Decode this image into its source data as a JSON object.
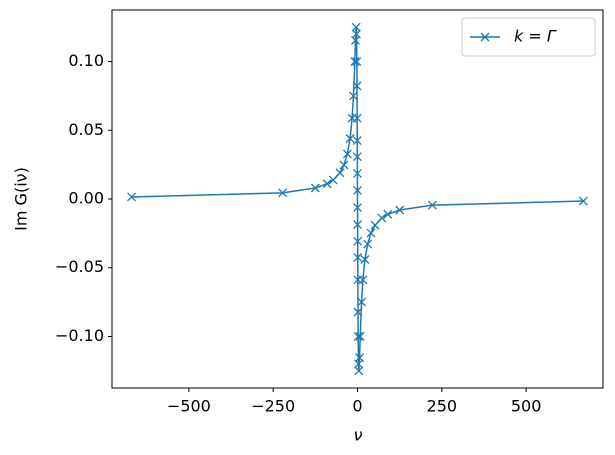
{
  "chart_data": {
    "type": "line",
    "xlabel": "ν",
    "ylabel": "Im G(iν)",
    "x": [
      -670,
      -222,
      -125,
      -90,
      -72,
      -52,
      -40,
      -30,
      -22,
      -16,
      -12,
      -8,
      -6,
      -4,
      -3,
      -2,
      -1.5,
      -1,
      -0.7,
      -0.5,
      -0.3,
      -0.1,
      0.1,
      0.3,
      0.5,
      0.7,
      1,
      1.5,
      2,
      3,
      4,
      6,
      8,
      12,
      16,
      22,
      30,
      40,
      52,
      72,
      90,
      125,
      222,
      670
    ],
    "series": [
      {
        "name": "k = Γ",
        "color": "#1f77b4",
        "marker": "x",
        "values": [
          0.0015,
          0.0045,
          0.008,
          0.0111,
          0.0138,
          0.0191,
          0.0248,
          0.0328,
          0.044,
          0.0588,
          0.075,
          0.1,
          0.1154,
          0.125,
          0.12,
          0.1,
          0.0822,
          0.0588,
          0.0425,
          0.0308,
          0.0186,
          0.0062,
          -0.0062,
          -0.0186,
          -0.0308,
          -0.0425,
          -0.0588,
          -0.0822,
          -0.1,
          -0.12,
          -0.125,
          -0.1154,
          -0.1,
          -0.075,
          -0.0588,
          -0.044,
          -0.0328,
          -0.0248,
          -0.0191,
          -0.0138,
          -0.0111,
          -0.008,
          -0.0045,
          -0.0015
        ]
      }
    ],
    "xlim": [
      -728,
      728
    ],
    "ylim": [
      -0.1375,
      0.1375
    ],
    "xticks": [
      {
        "value": -500,
        "label": "−500"
      },
      {
        "value": -250,
        "label": "−250"
      },
      0,
      250,
      500
    ],
    "yticks": [
      {
        "value": -0.1,
        "label": "−0.10"
      },
      {
        "value": -0.05,
        "label": "−0.05"
      },
      {
        "value": 0,
        "label": "0.00"
      },
      {
        "value": 0.05,
        "label": "0.05"
      },
      {
        "value": 0.1,
        "label": "0.10"
      }
    ],
    "grid": false,
    "legend": "upper right"
  }
}
